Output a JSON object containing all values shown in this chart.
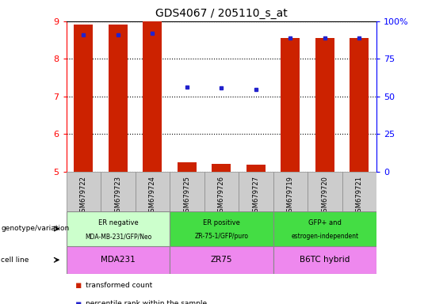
{
  "title": "GDS4067 / 205110_s_at",
  "samples": [
    "GSM679722",
    "GSM679723",
    "GSM679724",
    "GSM679725",
    "GSM679726",
    "GSM679727",
    "GSM679719",
    "GSM679720",
    "GSM679721"
  ],
  "bar_values": [
    8.92,
    8.92,
    9.0,
    5.25,
    5.22,
    5.18,
    8.55,
    8.55,
    8.55
  ],
  "percentile_values": [
    8.65,
    8.65,
    8.68,
    7.26,
    7.22,
    7.18,
    8.55,
    8.55,
    8.55
  ],
  "ylim": [
    5,
    9
  ],
  "yticks": [
    5,
    6,
    7,
    8,
    9
  ],
  "right_yticks_vals": [
    0,
    25,
    50,
    75,
    100
  ],
  "right_ytick_labels": [
    "0",
    "25",
    "50",
    "75",
    "100%"
  ],
  "bar_color": "#CC2200",
  "dot_color": "#2222CC",
  "group_colors": [
    "#CCFFCC",
    "#44DD44",
    "#44DD44"
  ],
  "cell_line_color": "#EE88EE",
  "tick_bg_color": "#CCCCCC",
  "groups": [
    {
      "label_top": "ER negative",
      "label_bot": "MDA-MB-231/GFP/Neo",
      "start": 0,
      "end": 3
    },
    {
      "label_top": "ER positive",
      "label_bot": "ZR-75-1/GFP/puro",
      "start": 3,
      "end": 6
    },
    {
      "label_top": "GFP+ and",
      "label_bot": "estrogen-independent",
      "start": 6,
      "end": 9
    }
  ],
  "cell_lines": [
    {
      "label": "MDA231",
      "start": 0,
      "end": 3
    },
    {
      "label": "ZR75",
      "start": 3,
      "end": 6
    },
    {
      "label": "B6TC hybrid",
      "start": 6,
      "end": 9
    }
  ],
  "genotype_label": "genotype/variation",
  "cell_line_label": "cell line",
  "legend_bar": "transformed count",
  "legend_dot": "percentile rank within the sample",
  "title_fontsize": 10,
  "bar_width": 0.55
}
